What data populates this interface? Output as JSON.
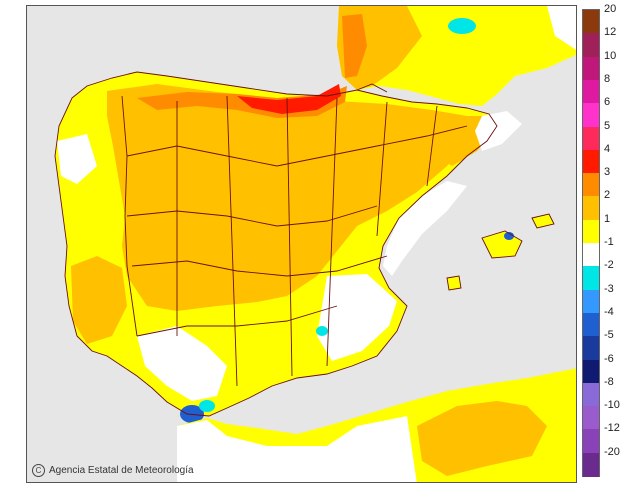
{
  "credit": "Agencia Estatal de Meteorología",
  "legend": [
    {
      "label": "20",
      "color": "#8b3a0e"
    },
    {
      "label": "12",
      "color": "#a0205a"
    },
    {
      "label": "10",
      "color": "#c0187a"
    },
    {
      "label": "8",
      "color": "#e01aa0"
    },
    {
      "label": "6",
      "color": "#ff33cc"
    },
    {
      "label": "5",
      "color": "#ff2a5c"
    },
    {
      "label": "4",
      "color": "#ff1a00"
    },
    {
      "label": "3",
      "color": "#ff8c00"
    },
    {
      "label": "2",
      "color": "#ffc000"
    },
    {
      "label": "1",
      "color": "#ffff00"
    },
    {
      "label": "-1",
      "color": "#ffffff"
    },
    {
      "label": "-2",
      "color": "#00e5e5"
    },
    {
      "label": "-3",
      "color": "#3399ff"
    },
    {
      "label": "-4",
      "color": "#1f5fd0"
    },
    {
      "label": "-5",
      "color": "#1a3a9e"
    },
    {
      "label": "-6",
      "color": "#101a70"
    },
    {
      "label": "-8",
      "color": "#8a6ad8"
    },
    {
      "label": "-10",
      "color": "#9a5ccc"
    },
    {
      "label": "-12",
      "color": "#8a42b8"
    },
    {
      "label": "-20",
      "color": "#6a2a8e"
    }
  ],
  "colors": {
    "sea": "#e6e6e6",
    "land_base": "#ffff00",
    "anomaly_2": "#ffc000",
    "anomaly_3": "#ff8c00",
    "anomaly_4": "#ff1a00",
    "no_change": "#ffffff",
    "boundary": "#6b1010"
  }
}
